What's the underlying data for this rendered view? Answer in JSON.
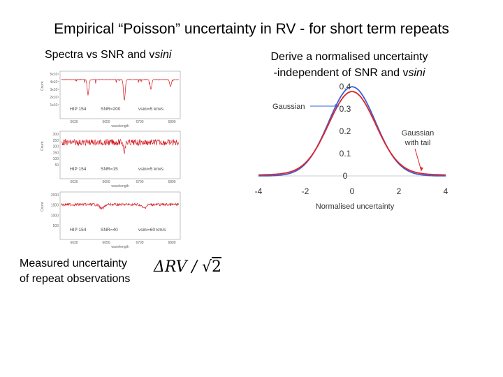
{
  "slide": {
    "title": "Empirical “Poisson” uncertainty in RV - for short term repeats",
    "left_heading_prefix": "Spectra vs SNR and v",
    "left_heading_italic": "sini",
    "right_heading_line1": "Derive a normalised uncertainty",
    "right_heading_line2_prefix": "-independent of SNR and v",
    "right_heading_line2_italic": "sini",
    "measured_line1": "Measured uncertainty",
    "measured_line2": "of repeat observations",
    "formula_delta": "ΔRV / ",
    "formula_sqrt": "√",
    "formula_radicand": "2"
  },
  "spectra_panels": [
    {
      "star": "HIP 154",
      "snr": "SNR=200",
      "vsini": "vsini=5 km/s",
      "xticks": [
        "6630",
        "6650",
        "6700",
        "6800"
      ],
      "xlabel": "wavelength",
      "ylabel": "Count",
      "yticks": [
        "5x10¹",
        "4x10¹",
        "3x10¹",
        "2x10¹",
        "1x10¹"
      ]
    },
    {
      "star": "HIP 154",
      "snr": "SNR=15",
      "vsini": "vsini=5 km/s",
      "xticks": [
        "6630",
        "6650",
        "6700",
        "6800"
      ],
      "xlabel": "wavelength",
      "ylabel": "Count",
      "yticks": [
        "300",
        "250",
        "200",
        "150",
        "100",
        "50"
      ]
    },
    {
      "star": "HIP 154",
      "snr": "SNR=40",
      "vsini": "vsini=60 km/s",
      "xticks": [
        "6630",
        "6650",
        "6700",
        "6800"
      ],
      "xlabel": "wavelength",
      "ylabel": "Count",
      "yticks": [
        "2000",
        "1500",
        "1000",
        "500"
      ]
    }
  ],
  "chart_data": {
    "type": "line",
    "title": "",
    "xlabel": "Normalised uncertainty",
    "ylabel": "",
    "xlim": [
      -4,
      4
    ],
    "ylim": [
      0,
      0.4
    ],
    "xticks": [
      "-4",
      "-2",
      "0",
      "2",
      "4"
    ],
    "yticks": [
      "0",
      "0.1",
      "0.2",
      "0.3",
      "0.4"
    ],
    "series": [
      {
        "name": "Gaussian",
        "color": "#3a5fd6",
        "x": [
          -4,
          -3.5,
          -3,
          -2.5,
          -2,
          -1.5,
          -1,
          -0.5,
          0,
          0.5,
          1,
          1.5,
          2,
          2.5,
          3,
          3.5,
          4
        ],
        "y": [
          0.0001,
          0.0009,
          0.0044,
          0.0175,
          0.054,
          0.1295,
          0.242,
          0.352,
          0.399,
          0.352,
          0.242,
          0.1295,
          0.054,
          0.0175,
          0.0044,
          0.0009,
          0.0001
        ]
      },
      {
        "name": "Gaussian with tail",
        "color": "#e0242a",
        "x": [
          -4,
          -3.5,
          -3,
          -2.5,
          -2,
          -1.5,
          -1,
          -0.5,
          0,
          0.5,
          1,
          1.5,
          2,
          2.5,
          3,
          3.5,
          4
        ],
        "y": [
          0.007,
          0.009,
          0.013,
          0.024,
          0.056,
          0.125,
          0.232,
          0.336,
          0.38,
          0.336,
          0.232,
          0.125,
          0.056,
          0.024,
          0.013,
          0.009,
          0.007
        ]
      }
    ],
    "annotations": [
      "Gaussian",
      "Gaussian\nwith tail"
    ],
    "annotation_gaussian": "Gaussian",
    "annotation_tail_line1": "Gaussian",
    "annotation_tail_line2": "with tail"
  }
}
